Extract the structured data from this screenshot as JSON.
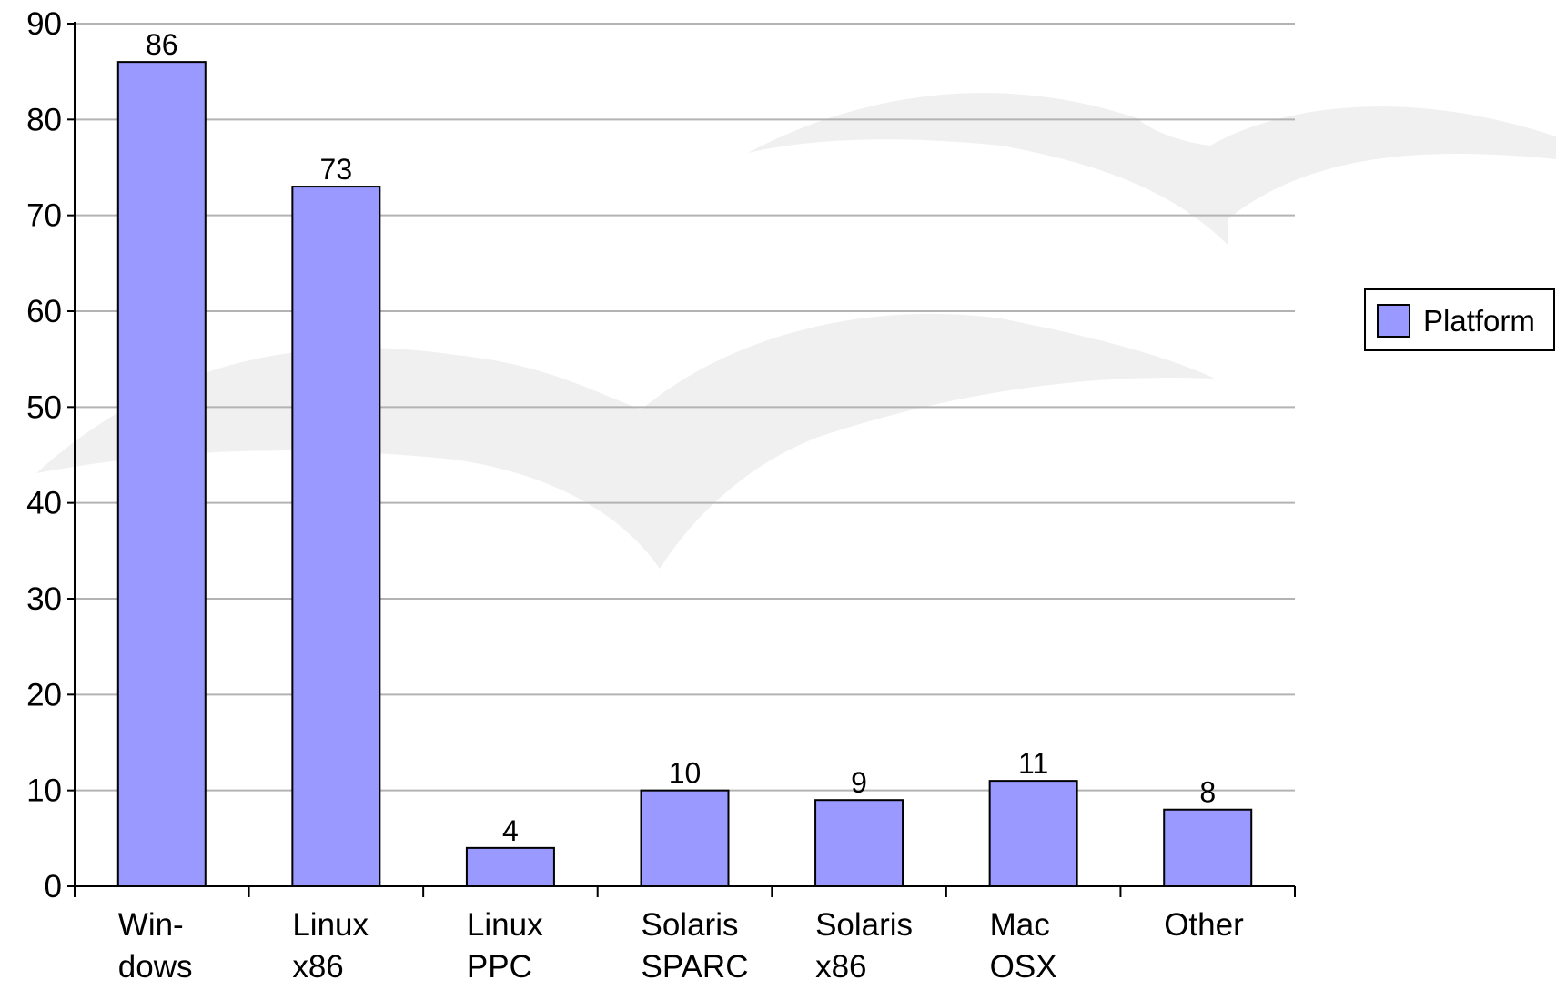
{
  "chart_data": {
    "type": "bar",
    "categories": [
      [
        "Win-",
        "dows"
      ],
      [
        "Linux",
        "x86"
      ],
      [
        "Linux",
        "PPC"
      ],
      [
        "Solaris",
        "SPARC"
      ],
      [
        "Solaris",
        "x86"
      ],
      [
        "Mac",
        "OSX"
      ],
      [
        "Other"
      ]
    ],
    "series": [
      {
        "name": "Platform",
        "color": "#9999ff",
        "values": [
          86,
          73,
          4,
          10,
          9,
          11,
          8
        ]
      }
    ],
    "ylim": [
      0,
      90
    ],
    "yticks": [
      0,
      10,
      20,
      30,
      40,
      50,
      60,
      70,
      80,
      90
    ],
    "grid": true,
    "legend": "right"
  }
}
